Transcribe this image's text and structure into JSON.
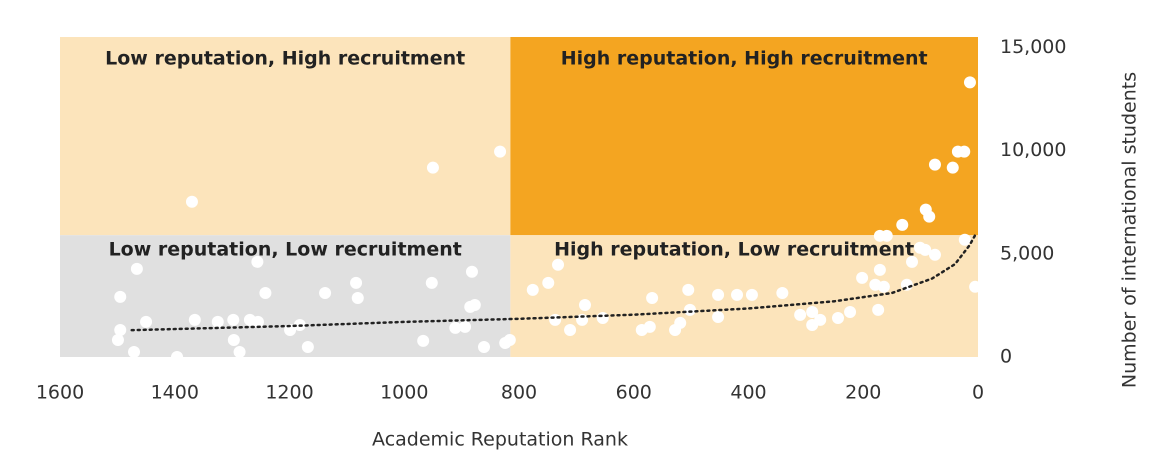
{
  "chart_data": {
    "type": "scatter",
    "x_label": "Academic Reputation Rank",
    "y_label": "Number of international students",
    "xlim": [
      1600,
      0
    ],
    "ylim": [
      0,
      15500
    ],
    "xticks": [
      1600,
      1400,
      1200,
      1000,
      800,
      600,
      400,
      200,
      0
    ],
    "yticks": [
      0,
      {
        "value": 5000,
        "label": "5,000"
      },
      {
        "value": 10000,
        "label": "10,000"
      },
      {
        "value": 15000,
        "label": "15,000"
      }
    ],
    "divider_x": 815,
    "divider_y": 5900,
    "quadrants": [
      {
        "label": "Low reputation, High recruitment",
        "color": "#fce4bb"
      },
      {
        "label": "High reputation, High recruitment",
        "color": "#f4a521"
      },
      {
        "label": "Low reputation, Low recruitment",
        "color": "#e0e0e0"
      },
      {
        "label": "High reputation, Low recruitment",
        "color": "#fce4bb"
      }
    ],
    "color": "#ffffff",
    "trend_color": "#222222",
    "trend": {
      "x": [
        1475,
        1200,
        1000,
        800,
        600,
        400,
        250,
        150,
        80,
        40,
        15,
        5
      ],
      "values": [
        1300,
        1500,
        1700,
        1850,
        2050,
        2350,
        2700,
        3100,
        3800,
        4500,
        5400,
        5900
      ]
    },
    "x": [
      14,
      833,
      950,
      1370,
      75,
      44,
      35,
      24,
      91,
      85,
      132,
      171,
      159,
      1495,
      1466,
      1495,
      1499,
      1450,
      1471,
      1396,
      1365,
      1325,
      1298,
      1297,
      1287,
      1269,
      1255,
      1256,
      1242,
      1199,
      1182,
      1168,
      1138,
      1084,
      1081,
      952,
      967,
      911,
      894,
      885,
      877,
      882,
      861,
      824,
      816,
      776,
      749,
      732,
      737,
      711,
      685,
      690,
      654,
      586,
      572,
      568,
      528,
      519,
      505,
      502,
      453,
      453,
      420,
      394,
      341,
      310,
      289,
      289,
      275,
      244,
      223,
      202,
      179,
      171,
      174,
      164,
      124,
      115,
      101,
      92,
      75,
      23,
      5
    ],
    "values": [
      13300,
      9950,
      9170,
      7520,
      9320,
      9170,
      9950,
      9950,
      7140,
      6800,
      6400,
      5870,
      5870,
      2910,
      4270,
      1310,
      825,
      1700,
      240,
      0,
      1800,
      1700,
      1800,
      825,
      240,
      1800,
      1700,
      4610,
      3100,
      1310,
      1550,
      485,
      3100,
      3590,
      2860,
      3590,
      780,
      1410,
      1460,
      2430,
      2520,
      4130,
      485,
      680,
      825,
      3250,
      3590,
      4470,
      1800,
      1310,
      2520,
      1800,
      1890,
      1310,
      1460,
      2860,
      1310,
      1650,
      3250,
      2280,
      3010,
      1940,
      3010,
      3010,
      3100,
      2040,
      2180,
      1550,
      1800,
      1890,
      2180,
      3830,
      3500,
      4220,
      2280,
      3400,
      3500,
      4610,
      5290,
      5190,
      4950,
      5680,
      3400
    ]
  }
}
